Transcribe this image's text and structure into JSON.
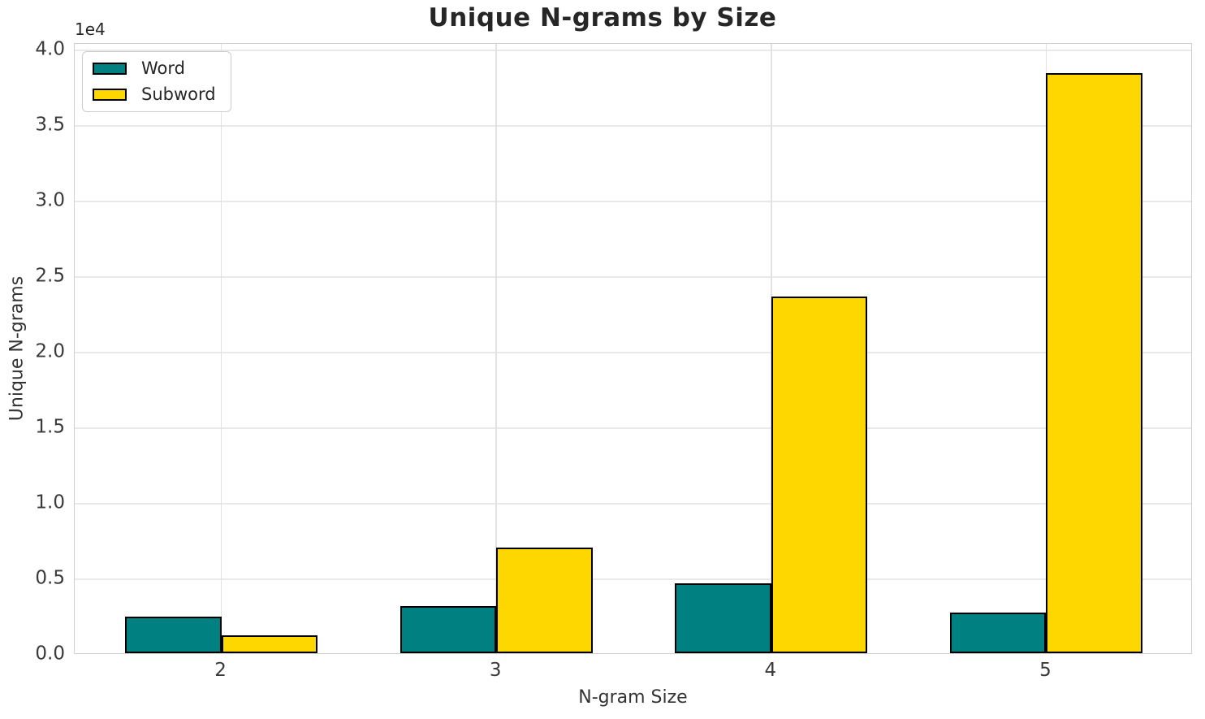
{
  "chart_data": {
    "type": "bar",
    "title": "Unique N-grams by Size",
    "xlabel": "N-gram Size",
    "ylabel": "Unique N-grams",
    "y_offset_label": "1e4",
    "categories": [
      2,
      3,
      4,
      5
    ],
    "xtick_labels": [
      "2",
      "3",
      "4",
      "5"
    ],
    "series": [
      {
        "name": "Word",
        "color": "#008080",
        "values": [
          2400,
          3100,
          4600,
          2700
        ]
      },
      {
        "name": "Subword",
        "color": "#FFD700",
        "values": [
          1200,
          7000,
          23600,
          38400
        ]
      }
    ],
    "bar_edge_color": "#000000",
    "bar_width": 0.35,
    "xlim": [
      1.4667,
      5.5333
    ],
    "ylim": [
      0,
      40430
    ],
    "yticks": [
      0,
      5000,
      10000,
      15000,
      20000,
      25000,
      30000,
      35000,
      40000
    ],
    "ytick_labels": [
      "0.0",
      "0.5",
      "1.0",
      "1.5",
      "2.0",
      "2.5",
      "3.0",
      "3.5",
      "4.0"
    ],
    "grid": true,
    "legend_position": "upper left"
  },
  "colors": {
    "background": "#ffffff",
    "grid": "#e9e9e9",
    "spine": "#d0d0d0",
    "text": "#262626"
  }
}
